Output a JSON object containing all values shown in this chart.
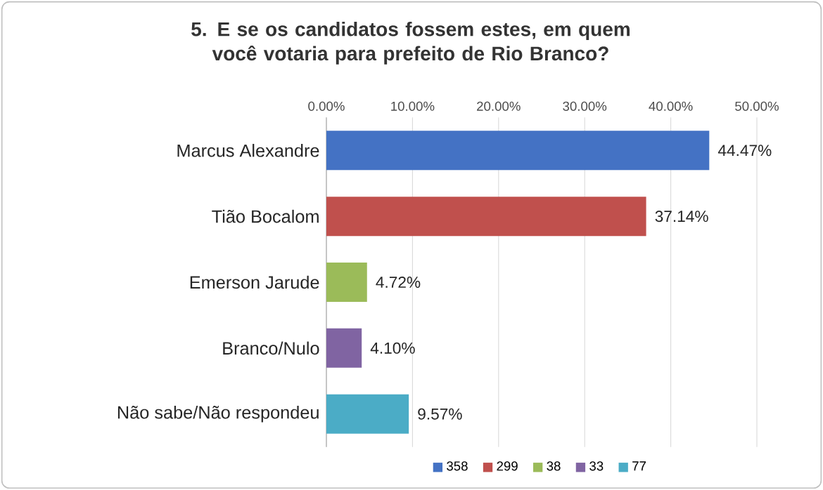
{
  "chart_data": {
    "type": "bar",
    "orientation": "horizontal",
    "title": "5. E se os candidatos fossem estes, em quem você votaria para prefeito de Rio Branco?",
    "categories": [
      "Marcus Alexandre",
      "Tião Bocalom",
      "Emerson Jarude",
      "Branco/Nulo",
      "Não sabe/Não respondeu"
    ],
    "series": [
      {
        "name": "358",
        "color": "#4472c4",
        "values": [
          44.47,
          null,
          null,
          null,
          null
        ],
        "value_labels": [
          "44.47%",
          null,
          null,
          null,
          null
        ]
      },
      {
        "name": "299",
        "color": "#c0504d",
        "values": [
          null,
          37.14,
          null,
          null,
          null
        ],
        "value_labels": [
          null,
          "37.14%",
          null,
          null,
          null
        ]
      },
      {
        "name": "38",
        "color": "#9bbb59",
        "values": [
          null,
          null,
          4.72,
          null,
          null
        ],
        "value_labels": [
          null,
          null,
          "4.72%",
          null,
          null
        ]
      },
      {
        "name": "33",
        "color": "#8064a2",
        "values": [
          null,
          null,
          null,
          4.1,
          null
        ],
        "value_labels": [
          null,
          null,
          null,
          "4.10%",
          null
        ]
      },
      {
        "name": "77",
        "color": "#4bacc6",
        "values": [
          null,
          null,
          null,
          null,
          9.57
        ],
        "value_labels": [
          null,
          null,
          null,
          null,
          "9.57%"
        ]
      }
    ],
    "xlim": [
      0,
      50
    ],
    "xticks": [
      {
        "value": 0,
        "label": "0.00%"
      },
      {
        "value": 10,
        "label": "10.00%"
      },
      {
        "value": 20,
        "label": "20.00%"
      },
      {
        "value": 30,
        "label": "30.00%"
      },
      {
        "value": 40,
        "label": "40.00%"
      },
      {
        "value": 50,
        "label": "50.00%"
      }
    ],
    "grid": "x",
    "legend": "bottom"
  }
}
